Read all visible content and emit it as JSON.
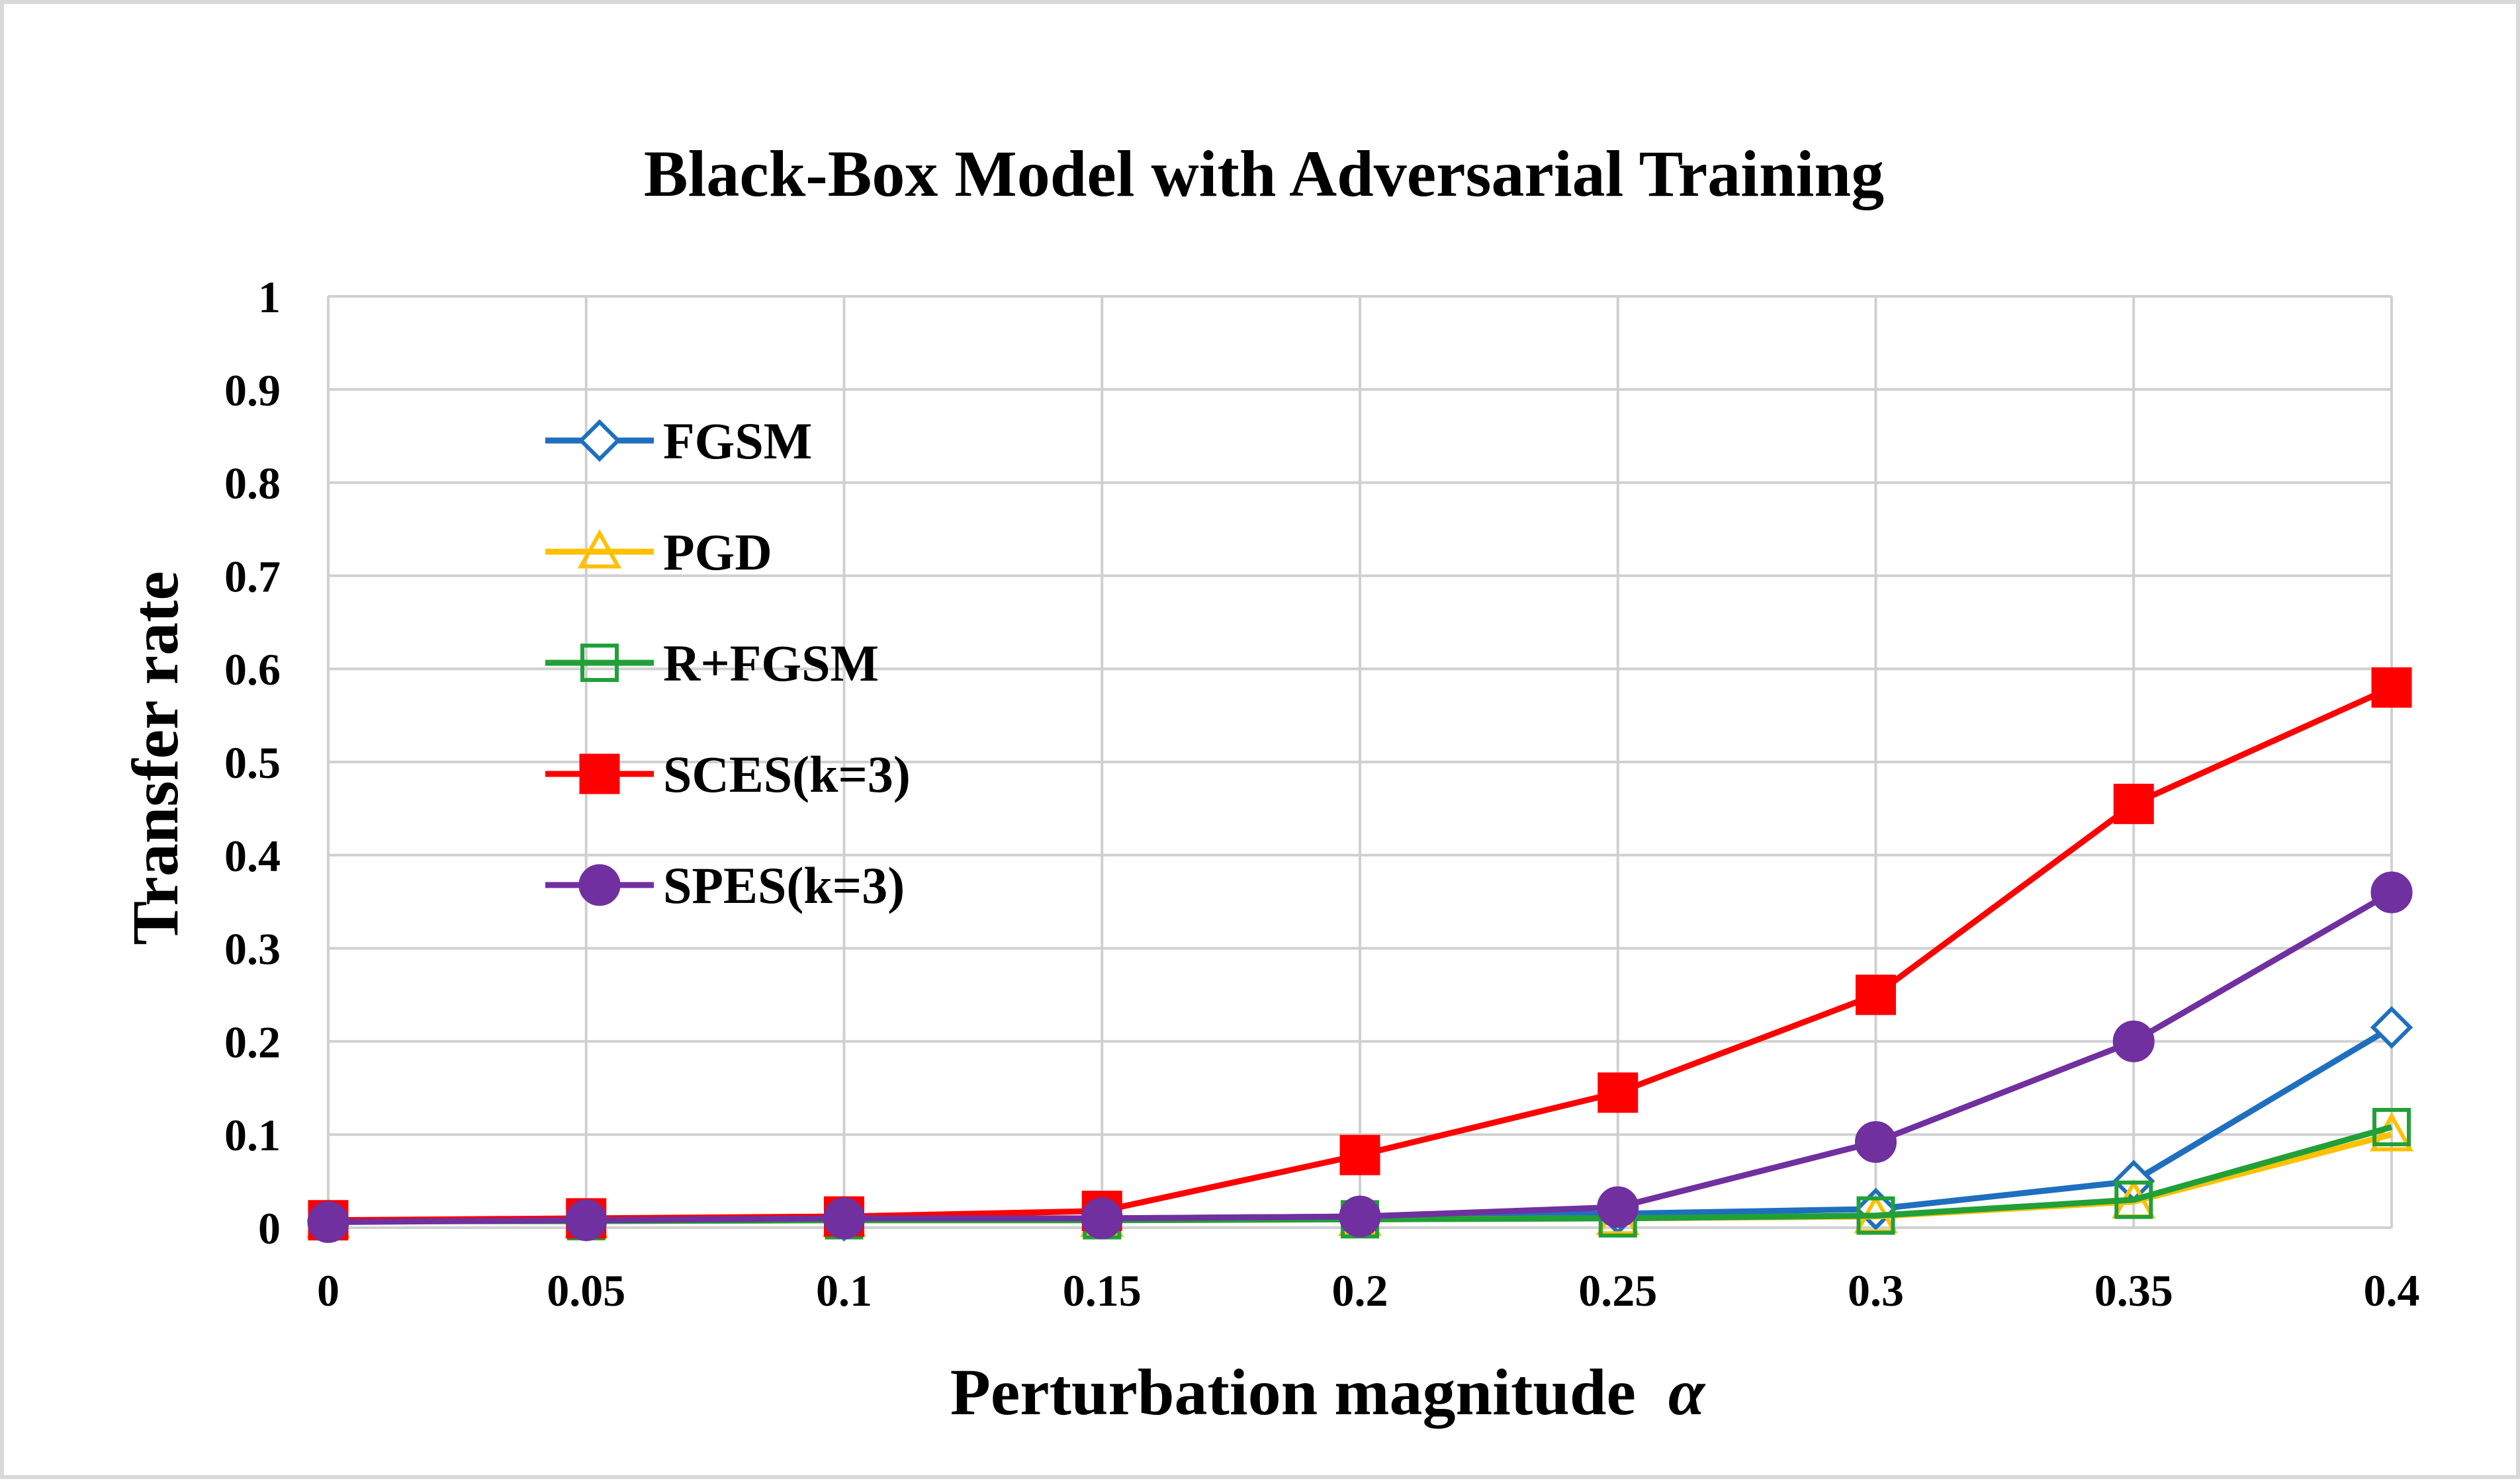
{
  "chart_data": {
    "type": "line",
    "title": "Black-Box Model with Adversarial Training",
    "xlabel": "Perturbation magnitude",
    "xlabel_symbol": "α",
    "ylabel": "Transfer rate",
    "x": [
      0,
      0.05,
      0.1,
      0.15,
      0.2,
      0.25,
      0.3,
      0.35,
      0.4
    ],
    "x_tick_labels": [
      "0",
      "0.05",
      "0.1",
      "0.15",
      "0.2",
      "0.25",
      "0.3",
      "0.35",
      "0.4"
    ],
    "y_tick_labels": [
      "0",
      "0.1",
      "0.2",
      "0.3",
      "0.4",
      "0.5",
      "0.6",
      "0.7",
      "0.8",
      "0.9",
      "1"
    ],
    "xlim": [
      0,
      0.4
    ],
    "ylim": [
      0,
      1
    ],
    "grid": true,
    "legend_position": "upper-left inside",
    "series": [
      {
        "name": "FGSM",
        "color": "#1f6fbf",
        "marker": "diamond-open",
        "values": [
          0.008,
          0.008,
          0.008,
          0.01,
          0.012,
          0.015,
          0.02,
          0.05,
          0.215
        ]
      },
      {
        "name": "PGD",
        "color": "#ffc000",
        "marker": "triangle-open",
        "values": [
          0.007,
          0.007,
          0.008,
          0.008,
          0.009,
          0.01,
          0.012,
          0.028,
          0.1
        ]
      },
      {
        "name": "R+FGSM",
        "color": "#21a038",
        "marker": "square-open",
        "values": [
          0.007,
          0.007,
          0.008,
          0.008,
          0.009,
          0.01,
          0.013,
          0.03,
          0.108
        ]
      },
      {
        "name": "SCES(k=3)",
        "color": "#ff0000",
        "marker": "square-filled",
        "values": [
          0.008,
          0.01,
          0.012,
          0.018,
          0.078,
          0.145,
          0.25,
          0.455,
          0.58
        ]
      },
      {
        "name": "SPES(k=3)",
        "color": "#7030a0",
        "marker": "circle-filled",
        "values": [
          0.006,
          0.008,
          0.01,
          0.01,
          0.012,
          0.022,
          0.092,
          0.2,
          0.36
        ]
      }
    ]
  }
}
